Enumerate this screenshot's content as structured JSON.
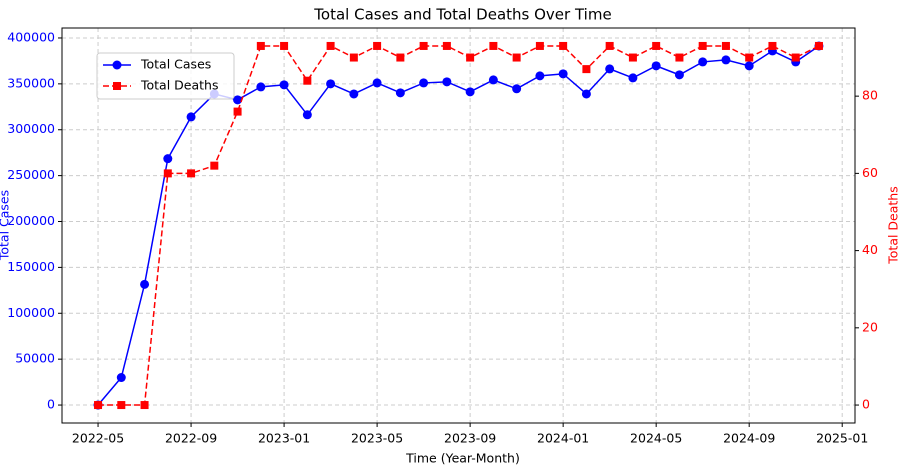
{
  "chart_data": {
    "type": "line",
    "title": "Total Cases and Total Deaths Over Time",
    "x_label": "Time (Year-Month)",
    "y_label": "Total Cases",
    "y2_label": "Total Deaths",
    "x": [
      "2022-05",
      "2022-06",
      "2022-07",
      "2022-08",
      "2022-09",
      "2022-10",
      "2022-11",
      "2022-12",
      "2023-01",
      "2023-02",
      "2023-03",
      "2023-04",
      "2023-05",
      "2023-06",
      "2023-07",
      "2023-08",
      "2023-09",
      "2023-10",
      "2023-11",
      "2023-12",
      "2024-01",
      "2024-02",
      "2024-03",
      "2024-04",
      "2024-05",
      "2024-06",
      "2024-07",
      "2024-08",
      "2024-09",
      "2024-10",
      "2024-11",
      "2024-12"
    ],
    "xticks": [
      "2022-05",
      "2022-09",
      "2023-01",
      "2023-05",
      "2023-09",
      "2024-01",
      "2024-05",
      "2024-09",
      "2025-01"
    ],
    "ylim": [
      -19565,
      410865
    ],
    "yticks": [
      0,
      50000,
      100000,
      150000,
      200000,
      250000,
      300000,
      350000,
      400000
    ],
    "y2lim": [
      -4.65,
      97.65
    ],
    "y2ticks": [
      0,
      20,
      40,
      60,
      80
    ],
    "grid": true,
    "legend": "upper left",
    "series": [
      {
        "name": "Total Cases",
        "color": "#0000ff",
        "marker": "circle",
        "dashed": false,
        "values": [
          0,
          30000,
          131500,
          268500,
          314000,
          339000,
          332600,
          346700,
          348900,
          316300,
          350000,
          339000,
          351000,
          340200,
          351000,
          352200,
          341300,
          354300,
          344600,
          358700,
          360900,
          339000,
          366300,
          356500,
          369600,
          359800,
          373900,
          376100,
          369600,
          385900,
          373900,
          391300
        ]
      },
      {
        "name": "Total Deaths",
        "color": "#ff0000",
        "marker": "square",
        "dashed": true,
        "axis": "y2",
        "values": [
          0,
          0,
          0,
          60,
          60,
          62,
          76,
          93,
          93,
          84,
          93,
          90,
          93,
          90,
          93,
          93,
          90,
          93,
          90,
          93,
          93,
          87,
          93,
          90,
          93,
          90,
          93,
          93,
          90,
          93,
          90,
          93
        ]
      }
    ]
  }
}
